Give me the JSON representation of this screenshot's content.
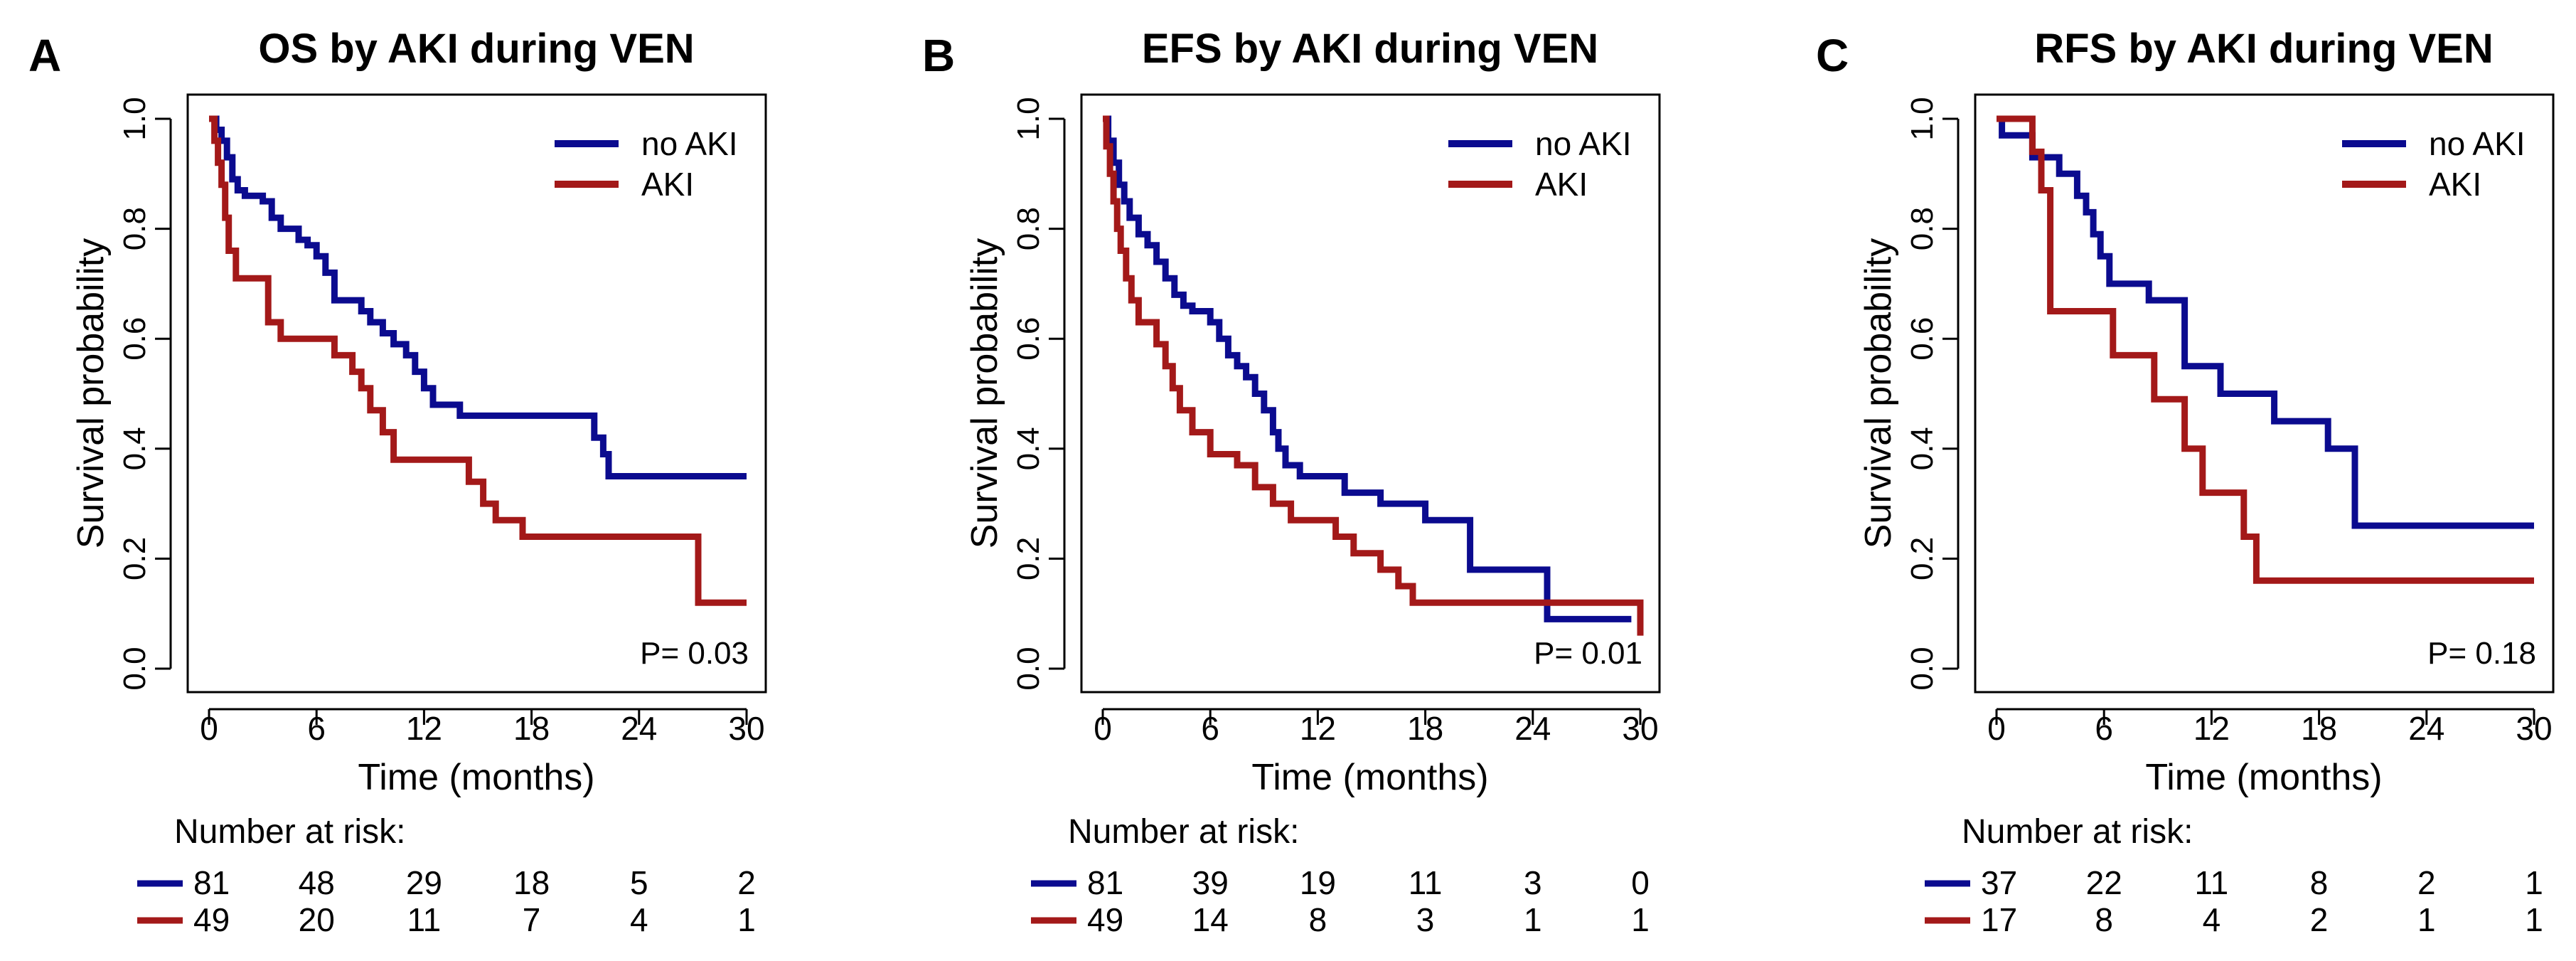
{
  "colors": {
    "no_aki": "#0b0b8f",
    "aki": "#a31919",
    "axis": "#000000"
  },
  "risk_header": "Number at risk:",
  "chart_data": [
    {
      "type": "line",
      "panel_label": "A",
      "title": "OS by AKI during VEN",
      "xlabel": "Time (months)",
      "ylabel": "Survival probability",
      "xlim": [
        0,
        30
      ],
      "ylim": [
        0,
        1
      ],
      "xticks": [
        0,
        6,
        12,
        18,
        24,
        30
      ],
      "yticks": [
        0.0,
        0.2,
        0.4,
        0.6,
        0.8,
        1.0
      ],
      "ytick_labels": [
        "0.0",
        "0.2",
        "0.4",
        "0.6",
        "0.8",
        "1.0"
      ],
      "legend_position": "top-right",
      "p_value_label": "P= 0.03",
      "series": [
        {
          "name": "no AKI",
          "color": "#0b0b8f",
          "x": [
            0,
            0.4,
            0.7,
            1.0,
            1.3,
            1.6,
            2.0,
            3.0,
            3.5,
            4.0,
            5.0,
            5.5,
            6.0,
            6.5,
            7.0,
            8.5,
            9.0,
            9.7,
            10.3,
            11.0,
            11.5,
            12.0,
            12.5,
            14.0,
            21.5,
            22.0,
            22.3,
            30
          ],
          "y": [
            1.0,
            0.98,
            0.96,
            0.93,
            0.89,
            0.87,
            0.86,
            0.85,
            0.82,
            0.8,
            0.78,
            0.77,
            0.75,
            0.72,
            0.67,
            0.65,
            0.63,
            0.61,
            0.59,
            0.57,
            0.54,
            0.51,
            0.48,
            0.46,
            0.42,
            0.39,
            0.35,
            0.35
          ]
        },
        {
          "name": "AKI",
          "color": "#a31919",
          "x": [
            0,
            0.3,
            0.5,
            0.7,
            0.9,
            1.1,
            1.5,
            3.3,
            4.0,
            5.0,
            7.0,
            8.0,
            8.5,
            9.0,
            9.7,
            10.3,
            14.5,
            15.3,
            16.0,
            17.5,
            27.3,
            30
          ],
          "y": [
            1.0,
            0.96,
            0.92,
            0.88,
            0.82,
            0.76,
            0.71,
            0.63,
            0.6,
            0.6,
            0.57,
            0.54,
            0.51,
            0.47,
            0.43,
            0.38,
            0.34,
            0.3,
            0.27,
            0.24,
            0.12,
            0.12
          ]
        }
      ],
      "risk_table": {
        "times": [
          0,
          6,
          12,
          18,
          24,
          30
        ],
        "rows": [
          {
            "name": "no AKI",
            "color": "#0b0b8f",
            "values": [
              "81",
              "48",
              "29",
              "18",
              "5",
              "2"
            ]
          },
          {
            "name": "AKI",
            "color": "#a31919",
            "values": [
              "49",
              "20",
              "11",
              "7",
              "4",
              "1"
            ]
          }
        ]
      }
    },
    {
      "type": "line",
      "panel_label": "B",
      "title": "EFS by AKI during VEN",
      "xlabel": "Time (months)",
      "ylabel": "Survival probability",
      "xlim": [
        0,
        30
      ],
      "ylim": [
        0,
        1
      ],
      "xticks": [
        0,
        6,
        12,
        18,
        24,
        30
      ],
      "yticks": [
        0.0,
        0.2,
        0.4,
        0.6,
        0.8,
        1.0
      ],
      "ytick_labels": [
        "0.0",
        "0.2",
        "0.4",
        "0.6",
        "0.8",
        "1.0"
      ],
      "legend_position": "top-right",
      "p_value_label": "P= 0.01",
      "series": [
        {
          "name": "no AKI",
          "color": "#0b0b8f",
          "x": [
            0,
            0.3,
            0.6,
            0.9,
            1.2,
            1.5,
            2.0,
            2.5,
            3.0,
            3.5,
            4.0,
            4.5,
            5.0,
            6.0,
            6.5,
            7.0,
            7.5,
            8.0,
            8.5,
            9.0,
            9.5,
            9.8,
            10.2,
            11.0,
            13.5,
            15.5,
            18.0,
            20.5,
            24.8,
            29.5
          ],
          "y": [
            1.0,
            0.96,
            0.92,
            0.88,
            0.85,
            0.82,
            0.79,
            0.77,
            0.74,
            0.71,
            0.68,
            0.66,
            0.65,
            0.63,
            0.6,
            0.57,
            0.55,
            0.53,
            0.5,
            0.47,
            0.43,
            0.4,
            0.37,
            0.35,
            0.32,
            0.3,
            0.27,
            0.18,
            0.09,
            0.09
          ]
        },
        {
          "name": "AKI",
          "color": "#a31919",
          "x": [
            0,
            0.2,
            0.4,
            0.6,
            0.8,
            1.0,
            1.3,
            1.6,
            2.0,
            3.0,
            3.5,
            3.9,
            4.3,
            5.0,
            6.0,
            7.5,
            8.5,
            9.5,
            10.5,
            13.0,
            14.0,
            15.5,
            16.5,
            17.3,
            30
          ],
          "y": [
            1.0,
            0.95,
            0.9,
            0.85,
            0.8,
            0.76,
            0.71,
            0.67,
            0.63,
            0.59,
            0.55,
            0.51,
            0.47,
            0.43,
            0.39,
            0.37,
            0.33,
            0.3,
            0.27,
            0.24,
            0.21,
            0.18,
            0.15,
            0.12,
            0.06
          ]
        }
      ],
      "risk_table": {
        "times": [
          0,
          6,
          12,
          18,
          24,
          30
        ],
        "rows": [
          {
            "name": "no AKI",
            "color": "#0b0b8f",
            "values": [
              "81",
              "39",
              "19",
              "11",
              "3",
              "0"
            ]
          },
          {
            "name": "AKI",
            "color": "#a31919",
            "values": [
              "49",
              "14",
              "8",
              "3",
              "1",
              "1"
            ]
          }
        ]
      }
    },
    {
      "type": "line",
      "panel_label": "C",
      "title": "RFS by AKI during VEN",
      "xlabel": "Time (months)",
      "ylabel": "Survival probability",
      "xlim": [
        0,
        30
      ],
      "ylim": [
        0,
        1
      ],
      "xticks": [
        0,
        6,
        12,
        18,
        24,
        30
      ],
      "yticks": [
        0.0,
        0.2,
        0.4,
        0.6,
        0.8,
        1.0
      ],
      "ytick_labels": [
        "0.0",
        "0.2",
        "0.4",
        "0.6",
        "0.8",
        "1.0"
      ],
      "legend_position": "top-right",
      "p_value_label": "P= 0.18",
      "series": [
        {
          "name": "no AKI",
          "color": "#0b0b8f",
          "x": [
            0,
            0.3,
            2.0,
            3.5,
            4.5,
            5.0,
            5.4,
            5.8,
            6.3,
            8.5,
            10.5,
            12.5,
            15.5,
            18.5,
            20.0,
            30
          ],
          "y": [
            1.0,
            0.97,
            0.93,
            0.9,
            0.86,
            0.83,
            0.79,
            0.75,
            0.7,
            0.67,
            0.55,
            0.5,
            0.45,
            0.4,
            0.26,
            0.26
          ]
        },
        {
          "name": "AKI",
          "color": "#a31919",
          "x": [
            0,
            2.0,
            2.5,
            3.0,
            6.5,
            8.8,
            10.5,
            11.5,
            13.8,
            14.5,
            30
          ],
          "y": [
            1.0,
            0.94,
            0.87,
            0.65,
            0.57,
            0.49,
            0.4,
            0.32,
            0.24,
            0.16,
            0.16
          ]
        }
      ],
      "risk_table": {
        "times": [
          0,
          6,
          12,
          18,
          24,
          30
        ],
        "rows": [
          {
            "name": "no AKI",
            "color": "#0b0b8f",
            "values": [
              "37",
              "22",
              "11",
              "8",
              "2",
              "1"
            ]
          },
          {
            "name": "AKI",
            "color": "#a31919",
            "values": [
              "17",
              "8",
              "4",
              "2",
              "1",
              "1"
            ]
          }
        ]
      }
    }
  ]
}
